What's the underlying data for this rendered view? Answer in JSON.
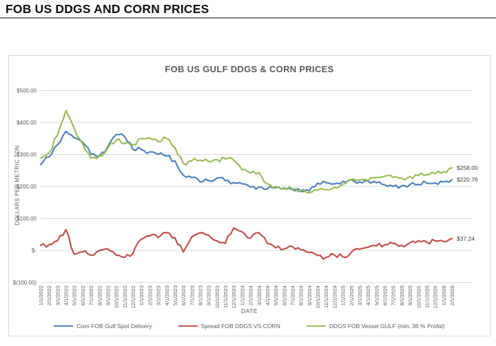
{
  "page": {
    "title": "FOB US DDGS AND CORN PRICES"
  },
  "chart": {
    "title": "FOB US GULF DDGS & CORN PRICES",
    "y_axis": {
      "title": "DOLLARS PER METRIC TON",
      "tick_labels": [
        "$500.00",
        "$400.00",
        "$300.00",
        "$200.00",
        "$100.00",
        "$-",
        "$(100.00)"
      ],
      "tick_values": [
        500,
        400,
        300,
        200,
        100,
        0,
        -100
      ]
    },
    "x_axis": {
      "title": "DATE"
    },
    "legend": [
      {
        "label": "Corn FOB Gulf Spot Delivery",
        "color": "#4F81BD"
      },
      {
        "label": "Spread FOB DDGS VS CORN",
        "color": "#C0504D"
      },
      {
        "label": "DDGS FOB Vessel GULF  (min. 36 % Profat)",
        "color": "#9BBB59"
      }
    ],
    "end_labels": [
      {
        "text": "$258.00",
        "value": 258.0
      },
      {
        "text": "$220.76",
        "value": 220.76
      },
      {
        "text": "$37.24",
        "value": 37.24
      }
    ]
  },
  "colors": {
    "corn_line": "#4F81BD",
    "spread_line": "#C0504D",
    "ddgs_line": "#9BBB59",
    "gridline": "#d9d9d9",
    "axis_text": "#595959",
    "title_rule": "#7f7f7f"
  },
  "chart_data": {
    "type": "line",
    "title": "FOB US GULF DDGS & CORN PRICES",
    "xlabel": "DATE",
    "ylabel": "DOLLARS PER METRIC TON",
    "ylim": [
      -100,
      500
    ],
    "grid": true,
    "legend_position": "bottom",
    "x": [
      "1/1/2022",
      "2/1/2022",
      "3/1/2022",
      "4/1/2022",
      "5/1/2022",
      "6/1/2022",
      "7/1/2022",
      "8/1/2022",
      "9/1/2022",
      "10/1/2022",
      "11/1/2022",
      "12/1/2022",
      "1/1/2023",
      "2/1/2023",
      "3/1/2023",
      "4/1/2023",
      "5/1/2023",
      "6/1/2023",
      "7/1/2023",
      "8/1/2023",
      "9/1/2023",
      "10/1/2023",
      "11/1/2023",
      "12/1/2023",
      "1/1/2024",
      "2/1/2024",
      "3/1/2024",
      "4/1/2024",
      "5/1/2024",
      "6/1/2024",
      "7/1/2024",
      "8/1/2024",
      "9/1/2024",
      "10/1/2024",
      "11/1/2024",
      "12/1/2024",
      "1/1/2025",
      "2/1/2025",
      "3/1/2025",
      "4/1/2025",
      "5/1/2025",
      "6/1/2025",
      "7/1/2025",
      "8/1/2025",
      "9/1/2025",
      "10/1/2025",
      "11/1/2025",
      "12/1/2025",
      "1/1/2026",
      "2/1/2026"
    ],
    "series": [
      {
        "name": "Corn FOB Gulf Spot Delivery",
        "color": "#4F81BD",
        "values": [
          268,
          292,
          330,
          372,
          352,
          338,
          300,
          295,
          325,
          362,
          356,
          315,
          315,
          308,
          300,
          295,
          280,
          235,
          228,
          214,
          218,
          226,
          218,
          212,
          208,
          198,
          198,
          192,
          196,
          193,
          190,
          184,
          186,
          210,
          212,
          208,
          216,
          222,
          214,
          216,
          212,
          205,
          200,
          202,
          206,
          206,
          210,
          211,
          214,
          220.76
        ]
      },
      {
        "name": "Spread FOB DDGS VS CORN",
        "color": "#C0504D",
        "values": [
          16,
          18,
          30,
          65,
          -12,
          -5,
          -15,
          0,
          5,
          -15,
          -22,
          -10,
          35,
          45,
          40,
          55,
          40,
          -5,
          42,
          55,
          48,
          30,
          22,
          70,
          58,
          38,
          55,
          22,
          8,
          4,
          12,
          2,
          -6,
          -16,
          -22,
          -14,
          -20,
          -6,
          4,
          10,
          14,
          18,
          22,
          16,
          24,
          30,
          26,
          30,
          28,
          37.24
        ]
      },
      {
        "name": "DDGS FOB Vessel GULF  (min. 36 % Profat)",
        "color": "#9BBB59",
        "values": [
          288,
          305,
          360,
          437,
          382,
          333,
          288,
          295,
          320,
          344,
          334,
          330,
          350,
          352,
          340,
          350,
          322,
          272,
          280,
          282,
          278,
          284,
          286,
          282,
          252,
          242,
          244,
          208,
          200,
          196,
          192,
          188,
          180,
          188,
          190,
          196,
          207,
          222,
          220,
          218,
          228,
          232,
          228,
          226,
          231,
          234,
          236,
          240,
          246,
          258.0
        ]
      }
    ]
  }
}
